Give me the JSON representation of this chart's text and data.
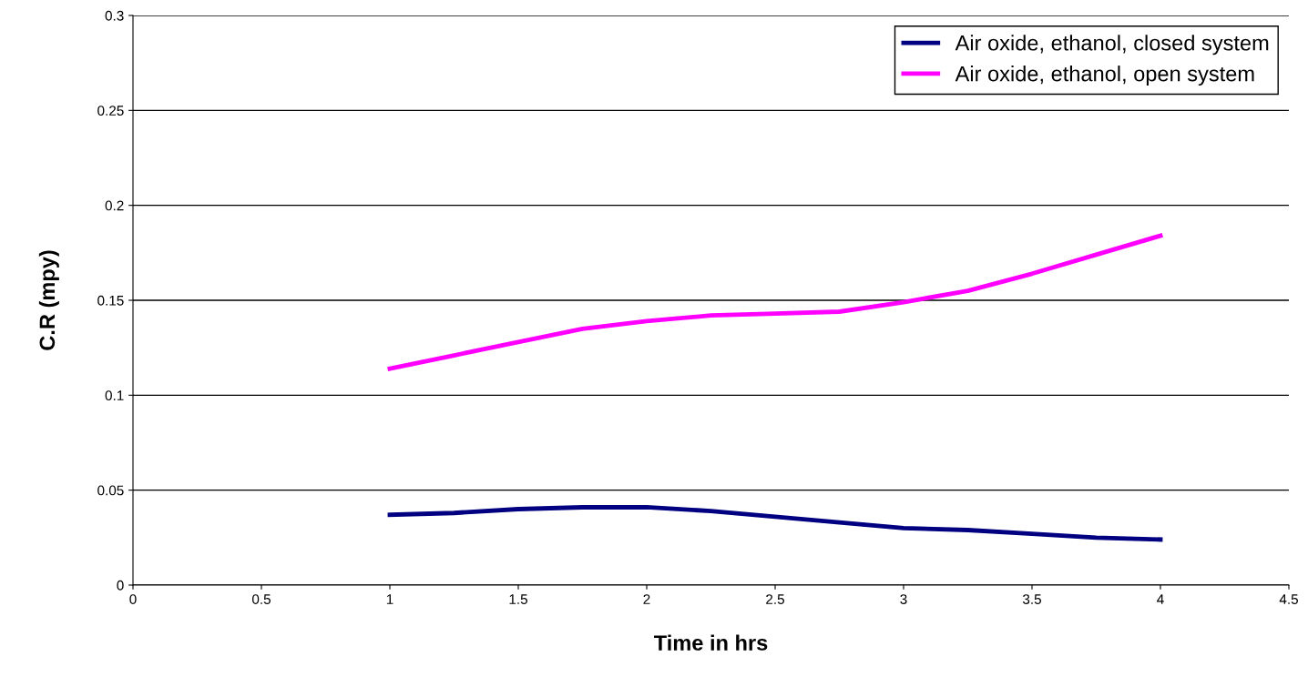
{
  "chart_data": {
    "type": "line",
    "xlabel": "Time in hrs",
    "ylabel": "C.R (mpy)",
    "x": [
      1,
      1.25,
      1.5,
      1.75,
      2,
      2.25,
      2.5,
      2.75,
      3,
      3.25,
      3.5,
      3.75,
      4
    ],
    "series": [
      {
        "name": "Air oxide, ethanol, closed system",
        "color": "#000080",
        "values": [
          0.037,
          0.038,
          0.04,
          0.041,
          0.041,
          0.039,
          0.036,
          0.033,
          0.03,
          0.029,
          0.027,
          0.025,
          0.024
        ]
      },
      {
        "name": "Air oxide, ethanol, open system",
        "color": "#ff00ff",
        "values": [
          0.114,
          0.121,
          0.128,
          0.135,
          0.139,
          0.142,
          0.143,
          0.144,
          0.149,
          0.155,
          0.164,
          0.174,
          0.184
        ]
      }
    ],
    "xlim": [
      0,
      4.5
    ],
    "xticks": [
      0,
      0.5,
      1,
      1.5,
      2,
      2.5,
      3,
      3.5,
      4,
      4.5
    ],
    "ylim": [
      0,
      0.3
    ],
    "yticks": [
      0,
      0.05,
      0.1,
      0.15,
      0.2,
      0.25,
      0.3
    ],
    "grid": "y",
    "legend": "top right",
    "marker": "none",
    "line_style": "solid"
  }
}
